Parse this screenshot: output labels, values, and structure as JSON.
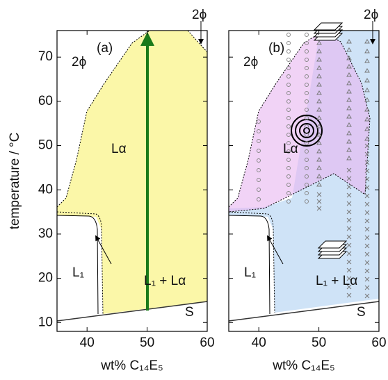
{
  "chart_data": [
    {
      "type": "phase",
      "panel_label": "(a)",
      "xlabel": "wt% C₁₄E₅",
      "ylabel": "temperature / °C",
      "xlim": [
        35,
        60
      ],
      "ylim": [
        8,
        76
      ],
      "xticks": [
        40,
        50,
        60
      ],
      "yticks": [
        10,
        20,
        30,
        40,
        50,
        60,
        70
      ],
      "annotations": [
        "2ϕ",
        "2ϕ",
        "Lα",
        "L₁",
        "L₁ + Lα",
        "S"
      ]
    },
    {
      "type": "phase",
      "panel_label": "(b)",
      "xlabel": "wt% C₁₄E₅",
      "xlim": [
        35,
        60
      ],
      "ylim": [
        8,
        76
      ],
      "xticks": [
        40,
        50,
        60
      ],
      "yticks": [
        10,
        20,
        30,
        40,
        50,
        60,
        70
      ],
      "annotations": [
        "2ϕ",
        "2ϕ",
        "Lα",
        "L₁",
        "L₁ + Lα",
        "S"
      ]
    }
  ]
}
